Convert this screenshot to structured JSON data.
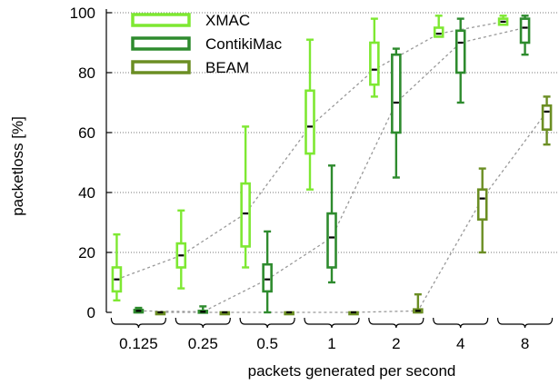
{
  "chart_data": {
    "type": "box",
    "xlabel": "packets generated per second",
    "ylabel": "packetloss [%]",
    "ylim": [
      0,
      100
    ],
    "yticks": [
      0,
      20,
      40,
      60,
      80,
      100
    ],
    "categories": [
      "0.125",
      "0.25",
      "0.5",
      "1",
      "2",
      "4",
      "8"
    ],
    "grid": "horizontal dotted",
    "legend_position": "top-left",
    "series": [
      {
        "name": "XMAC",
        "color": "#7ee832",
        "min": [
          4,
          8,
          15,
          41,
          72,
          92,
          96
        ],
        "q1": [
          7,
          15,
          22,
          53,
          76,
          92,
          96
        ],
        "median": [
          11,
          19,
          33,
          62,
          81,
          93,
          97
        ],
        "q3": [
          15,
          23,
          43,
          74,
          90,
          95,
          98
        ],
        "max": [
          26,
          34,
          62,
          91,
          98,
          99,
          99
        ]
      },
      {
        "name": "ContikiMac",
        "color": "#2e8b2e",
        "min": [
          0,
          0,
          0,
          10,
          45,
          70,
          86
        ],
        "q1": [
          0,
          0,
          7,
          15,
          60,
          80,
          90
        ],
        "median": [
          0.5,
          0.2,
          11,
          25,
          70,
          90,
          95
        ],
        "q3": [
          0.8,
          0.5,
          16,
          33,
          86,
          94,
          98
        ],
        "max": [
          1.5,
          2,
          27,
          49,
          88,
          98,
          99
        ]
      },
      {
        "name": "BEAM",
        "color": "#6b8e23",
        "min": [
          0,
          0,
          0,
          0,
          0,
          20,
          56
        ],
        "q1": [
          0,
          0,
          0,
          0,
          0,
          31,
          61
        ],
        "median": [
          0,
          0,
          0,
          0,
          0.5,
          38,
          67
        ],
        "q3": [
          0,
          0,
          0,
          0,
          1,
          41,
          69
        ],
        "max": [
          0,
          0,
          0,
          0,
          6,
          48,
          72
        ]
      }
    ]
  }
}
